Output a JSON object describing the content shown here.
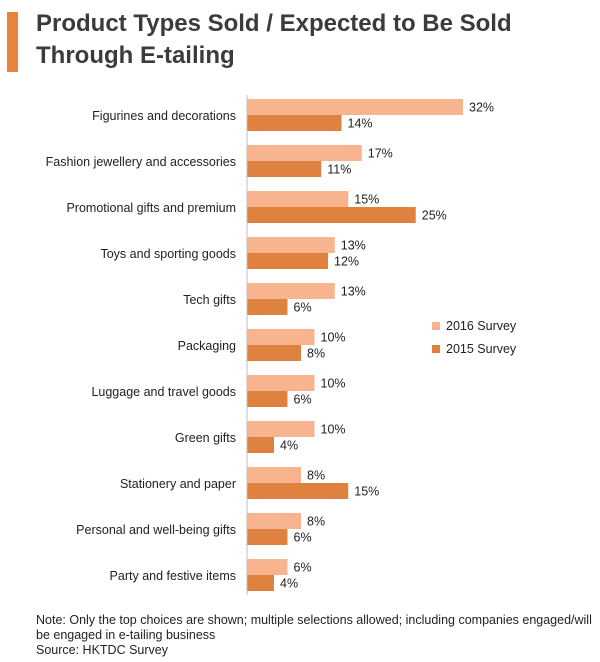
{
  "header": {
    "title": "Product Types Sold / Expected to Be Sold Through E-tailing"
  },
  "notes": {
    "note": "Note: Only the top choices are shown; multiple selections allowed; including companies engaged/will be engaged in e-tailing business",
    "source": "Source: HKTDC Survey"
  },
  "chart_data": {
    "type": "bar",
    "orientation": "horizontal",
    "title": "Product Types Sold / Expected to Be Sold Through E-tailing",
    "categories": [
      "Figurines and decorations",
      "Fashion jewellery and accessories",
      "Promotional gifts and premium",
      "Toys and sporting goods",
      "Tech gifts",
      "Packaging",
      "Luggage and travel goods",
      "Green gifts",
      "Stationery and paper",
      "Personal and well-being gifts",
      "Party and festive items"
    ],
    "series": [
      {
        "name": "2016 Survey",
        "color": "#f7b48f",
        "values": [
          32,
          17,
          15,
          13,
          13,
          10,
          10,
          10,
          8,
          8,
          6
        ]
      },
      {
        "name": "2015 Survey",
        "color": "#e0823f",
        "values": [
          14,
          11,
          25,
          12,
          6,
          8,
          6,
          4,
          15,
          6,
          4
        ]
      }
    ],
    "value_suffix": "%",
    "xlim": [
      0,
      35
    ],
    "grid": false,
    "legend_position": "right"
  }
}
